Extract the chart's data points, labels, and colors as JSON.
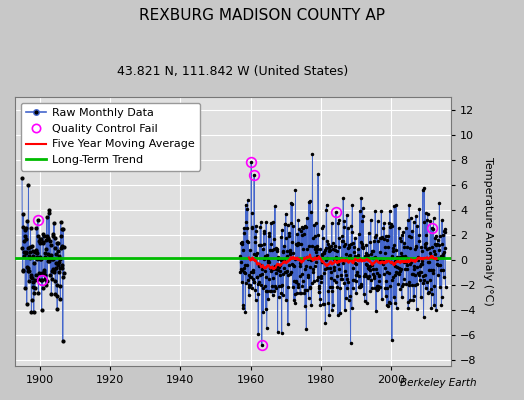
{
  "title": "REXBURG MADISON COUNTY AP",
  "subtitle": "43.821 N, 111.842 W (United States)",
  "ylabel": "Temperature Anomaly (°C)",
  "credit": "Berkeley Earth",
  "ylim": [
    -8.5,
    13
  ],
  "yticks": [
    -8,
    -6,
    -4,
    -2,
    0,
    2,
    4,
    6,
    8,
    10,
    12
  ],
  "xlim": [
    1893,
    2017
  ],
  "xticks": [
    1900,
    1920,
    1940,
    1960,
    1980,
    2000
  ],
  "background_color": "#c8c8c8",
  "plot_bg_color": "#e0e0e0",
  "grid_color": "white",
  "raw_line_color": "#4466cc",
  "raw_dot_color": "black",
  "qc_fail_color": "#ff00ff",
  "moving_avg_color": "red",
  "trend_color": "#00bb00",
  "title_fontsize": 11,
  "subtitle_fontsize": 9,
  "legend_fontsize": 8,
  "tick_fontsize": 8,
  "legend_items": [
    "Raw Monthly Data",
    "Quality Control Fail",
    "Five Year Moving Average",
    "Long-Term Trend"
  ]
}
